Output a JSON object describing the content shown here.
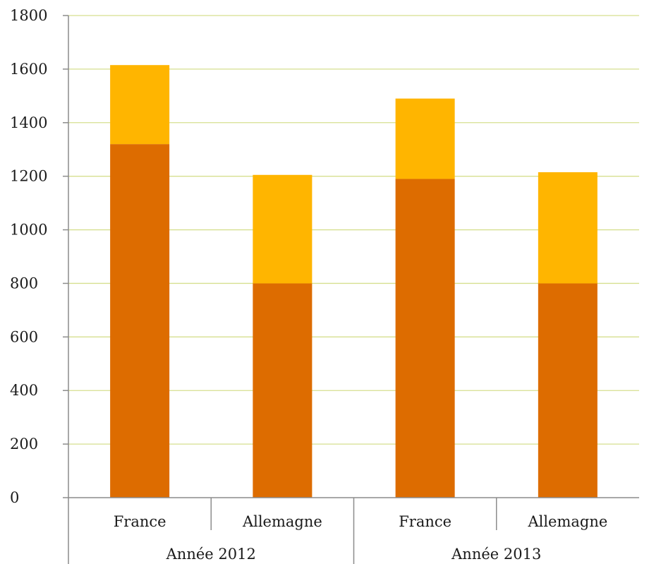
{
  "chart_data": {
    "type": "bar",
    "stacked": true,
    "title": "",
    "xlabel": "",
    "ylabel": "",
    "ylim": [
      0,
      1800
    ],
    "yticks": [
      0,
      200,
      400,
      600,
      800,
      1000,
      1200,
      1400,
      1600,
      1800
    ],
    "ytick_labels": [
      "0",
      "200",
      "400",
      "600",
      "800",
      "1000",
      "1200",
      "1400",
      "1600",
      "1800"
    ],
    "grid": true,
    "legend": "none",
    "categories": [
      "France",
      "Allemagne",
      "France",
      "Allemagne"
    ],
    "groups": [
      {
        "label": "Année 2012",
        "categories": [
          "France",
          "Allemagne"
        ]
      },
      {
        "label": "Année 2013",
        "categories": [
          "France",
          "Allemagne"
        ]
      }
    ],
    "series": [
      {
        "values": [
          1320,
          800,
          1190,
          800
        ],
        "color": "#dd6c00"
      },
      {
        "values": [
          295,
          405,
          300,
          415
        ],
        "color": "#ffb500"
      }
    ],
    "colors": {
      "grid": "#d6df8f",
      "axis": "#8c8c8c"
    }
  }
}
